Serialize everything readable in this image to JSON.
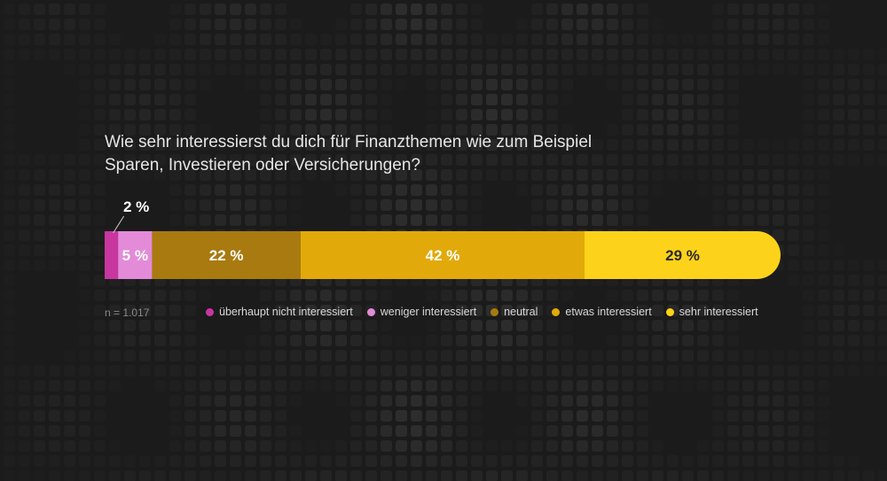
{
  "title_line1": "Wie sehr interessierst du dich für Finanzthemen wie zum Beispiel",
  "title_line2": "Sparen, Investieren oder Versicherungen?",
  "note": "n = 1.017",
  "chart_data": {
    "type": "bar",
    "orientation": "horizontal-stacked",
    "categories": [
      "überhaupt nicht interessiert",
      "weniger interessiert",
      "neutral",
      "etwas interessiert",
      "sehr interessiert"
    ],
    "values": [
      2,
      5,
      22,
      42,
      29
    ],
    "labels": [
      "2 %",
      "5 %",
      "22 %",
      "42 %",
      "29 %"
    ],
    "colors": [
      "#c7379f",
      "#e38bd8",
      "#a87a10",
      "#e2a90a",
      "#fdd21a"
    ],
    "label_colors": [
      "#ffffff",
      "#ffffff",
      "#ffffff",
      "#ffffff",
      "#2a2a2a"
    ],
    "legend_placement": "bottom"
  }
}
